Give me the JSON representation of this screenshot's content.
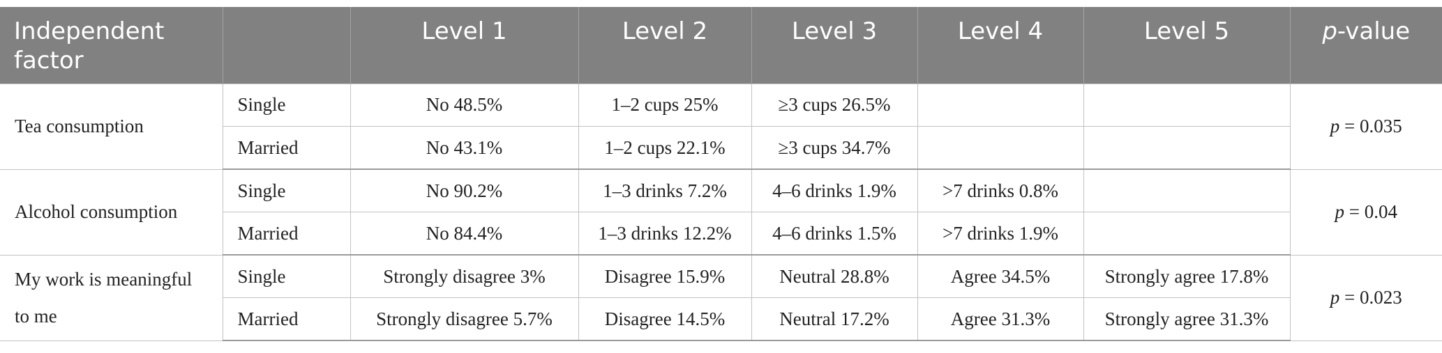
{
  "header": {
    "factor": "Independent factor",
    "group": "",
    "levels": [
      "Level 1",
      "Level 2",
      "Level 3",
      "Level 4",
      "Level 5"
    ],
    "pvalue_italic": "p",
    "pvalue_rest": "-value"
  },
  "rows": [
    {
      "factor": "Tea consumption",
      "pvalue_italic": "p",
      "pvalue_rest": " = 0.035",
      "groups": [
        {
          "name": "Single",
          "cells": [
            "No 48.5%",
            "1–2 cups 25%",
            "≥3 cups 26.5%",
            "",
            ""
          ]
        },
        {
          "name": "Married",
          "cells": [
            "No 43.1%",
            "1–2 cups 22.1%",
            "≥3 cups 34.7%",
            "",
            ""
          ]
        }
      ]
    },
    {
      "factor": "Alcohol consumption",
      "pvalue_italic": "p",
      "pvalue_rest": " = 0.04",
      "groups": [
        {
          "name": "Single",
          "cells": [
            "No 90.2%",
            "1–3 drinks 7.2%",
            "4–6 drinks 1.9%",
            ">7 drinks 0.8%",
            ""
          ]
        },
        {
          "name": "Married",
          "cells": [
            "No 84.4%",
            "1–3 drinks 12.2%",
            "4–6 drinks 1.5%",
            ">7 drinks 1.9%",
            ""
          ]
        }
      ]
    },
    {
      "factor": "My work is meaningful to me",
      "pvalue_italic": "p",
      "pvalue_rest": " = 0.023",
      "groups": [
        {
          "name": "Single",
          "cells": [
            "Strongly disagree 3%",
            "Disagree 15.9%",
            "Neutral 28.8%",
            "Agree 34.5%",
            "Strongly agree 17.8%"
          ]
        },
        {
          "name": "Married",
          "cells": [
            "Strongly disagree 5.7%",
            "Disagree 14.5%",
            "Neutral 17.2%",
            "Agree 31.3%",
            "Strongly agree 31.3%"
          ]
        }
      ]
    }
  ]
}
